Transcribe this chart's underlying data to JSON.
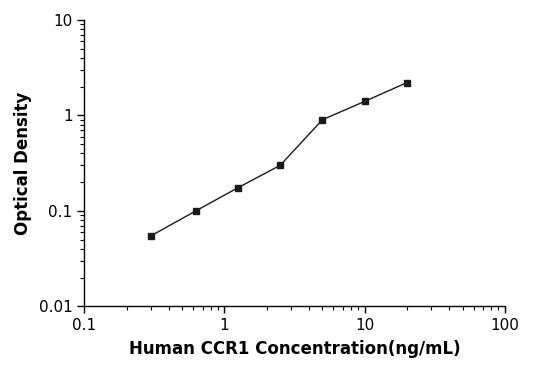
{
  "x": [
    0.3,
    0.625,
    1.25,
    2.5,
    5.0,
    10.0,
    20.0
  ],
  "y": [
    0.055,
    0.1,
    0.175,
    0.3,
    0.9,
    1.4,
    2.2
  ],
  "xlabel": "Human CCR1 Concentration(ng/mL)",
  "ylabel": "Optical Density",
  "xlim": [
    0.1,
    100
  ],
  "ylim": [
    0.01,
    10
  ],
  "marker": "s",
  "marker_color": "#1a1a1a",
  "line_color": "#555555",
  "marker_size": 5,
  "line_width": 1.0,
  "background_color": "#ffffff",
  "xlabel_fontsize": 12,
  "ylabel_fontsize": 12,
  "tick_fontsize": 11,
  "x_ticks": [
    0.1,
    1,
    10,
    100
  ],
  "y_ticks": [
    0.01,
    0.1,
    1,
    10
  ],
  "figsize": [
    5.33,
    3.72
  ],
  "dpi": 100
}
